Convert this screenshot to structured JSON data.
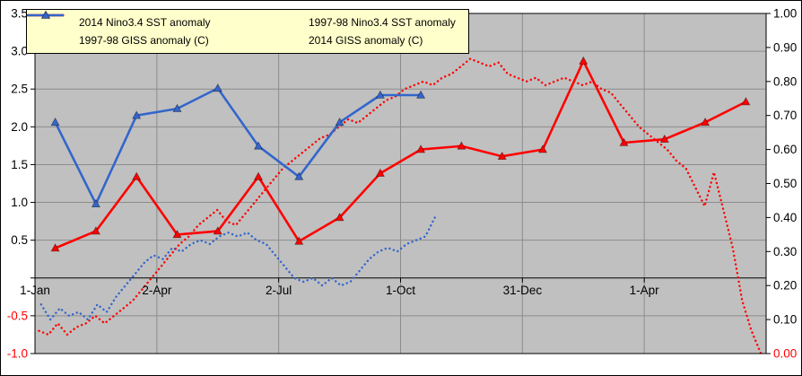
{
  "legend": {
    "background": "#FFFFCC",
    "items": [
      {
        "label": "2014 Nino3.4 SST anomaly",
        "style": "dotted",
        "color": "#3366CC"
      },
      {
        "label": "1997-98 Nino3.4 SST anomaly",
        "style": "dotted",
        "color": "#FF0000"
      },
      {
        "label": "1997-98 GISS anomaly (C)",
        "style": "solid-triangle",
        "color": "#FF0000"
      },
      {
        "label": "2014 GISS anomaly (C)",
        "style": "solid-triangle",
        "color": "#3366CC"
      }
    ]
  },
  "chart_data": {
    "type": "line",
    "plot_bg": "#C0C0C0",
    "grid_color": "#8C8C8C",
    "legend_position": "top-left",
    "left_axis": {
      "min": -1.0,
      "max": 3.5,
      "tick_step": 0.5,
      "ticks": [
        {
          "label": "3.5",
          "value": 3.5
        },
        {
          "label": "3.0",
          "value": 3.0
        },
        {
          "label": "2.5",
          "value": 2.5
        },
        {
          "label": "2.0",
          "value": 2.0
        },
        {
          "label": "1.5",
          "value": 1.5
        },
        {
          "label": "1.0",
          "value": 1.0
        },
        {
          "label": "0.5",
          "value": 0.5
        },
        {
          "label": "-0.5",
          "value": -0.5,
          "color": "#FF0000"
        },
        {
          "label": "-1.0",
          "value": -1.0,
          "color": "#FF0000"
        }
      ]
    },
    "right_axis": {
      "min": 0.0,
      "max": 1.0,
      "tick_step": 0.1,
      "ticks": [
        {
          "label": "1.00",
          "value": 1.0
        },
        {
          "label": "0.90",
          "value": 0.9
        },
        {
          "label": "0.80",
          "value": 0.8
        },
        {
          "label": "0.70",
          "value": 0.7
        },
        {
          "label": "0.60",
          "value": 0.6
        },
        {
          "label": "0.50",
          "value": 0.5
        },
        {
          "label": "0.40",
          "value": 0.4
        },
        {
          "label": "0.30",
          "value": 0.3
        },
        {
          "label": "0.20",
          "value": 0.2
        },
        {
          "label": "0.10",
          "value": 0.1
        },
        {
          "label": "0.00",
          "value": 0.0,
          "color": "#FF0000"
        }
      ]
    },
    "x_axis": {
      "months_total": 18,
      "grid_months": [
        3,
        6,
        9,
        12,
        15
      ],
      "tick_mark_months": [
        0,
        3,
        6,
        9,
        12,
        15,
        18
      ],
      "ticks": [
        {
          "label": "1-Jan",
          "month": 0
        },
        {
          "label": "2-Apr",
          "month": 3
        },
        {
          "label": "2-Jul",
          "month": 6
        },
        {
          "label": "1-Oct",
          "month": 9
        },
        {
          "label": "31-Dec",
          "month": 12
        },
        {
          "label": "1-Apr",
          "month": 15
        }
      ]
    },
    "series": [
      {
        "name": "2014 Nino3.4 SST anomaly",
        "axis": "left",
        "color": "#3366CC",
        "line": "dotted",
        "markers": false,
        "x_start": 0.15,
        "x_step": 0.2308,
        "values": [
          -0.35,
          -0.55,
          -0.4,
          -0.5,
          -0.45,
          -0.55,
          -0.35,
          -0.45,
          -0.25,
          -0.1,
          0.05,
          0.2,
          0.3,
          0.25,
          0.4,
          0.35,
          0.45,
          0.5,
          0.45,
          0.55,
          0.6,
          0.55,
          0.6,
          0.5,
          0.45,
          0.3,
          0.15,
          0.0,
          -0.05,
          0.0,
          -0.1,
          0.0,
          -0.1,
          -0.05,
          0.1,
          0.25,
          0.35,
          0.4,
          0.35,
          0.45,
          0.5,
          0.55,
          0.8
        ]
      },
      {
        "name": "1997-98 Nino3.4 SST anomaly",
        "axis": "left",
        "color": "#FF0000",
        "line": "dotted",
        "markers": false,
        "x_start": 0.1,
        "x_step": 0.2308,
        "values": [
          -0.7,
          -0.75,
          -0.6,
          -0.75,
          -0.65,
          -0.6,
          -0.5,
          -0.6,
          -0.5,
          -0.4,
          -0.3,
          -0.15,
          0.0,
          0.15,
          0.3,
          0.45,
          0.55,
          0.7,
          0.8,
          0.9,
          0.75,
          0.7,
          0.85,
          1.0,
          1.15,
          1.3,
          1.45,
          1.55,
          1.65,
          1.75,
          1.85,
          1.9,
          2.0,
          2.1,
          2.05,
          2.15,
          2.25,
          2.35,
          2.4,
          2.5,
          2.55,
          2.6,
          2.55,
          2.65,
          2.7,
          2.8,
          2.9,
          2.85,
          2.8,
          2.85,
          2.7,
          2.65,
          2.6,
          2.65,
          2.55,
          2.6,
          2.65,
          2.6,
          2.55,
          2.6,
          2.5,
          2.45,
          2.3,
          2.15,
          2.0,
          1.9,
          1.8,
          1.7,
          1.55,
          1.45,
          1.2,
          0.95,
          1.4,
          0.9,
          0.4,
          -0.3,
          -0.7,
          -1.0
        ]
      },
      {
        "name": "1997-98 GISS anomaly (C)",
        "axis": "right",
        "color": "#FF0000",
        "line": "solid",
        "markers": true,
        "x_start": 0.5,
        "x_step": 1,
        "values": [
          0.31,
          0.36,
          0.52,
          0.35,
          0.36,
          0.52,
          0.33,
          0.4,
          0.53,
          0.6,
          0.61,
          0.58,
          0.6,
          0.86,
          0.62,
          0.63,
          0.68,
          0.74
        ]
      },
      {
        "name": "2014 GISS anomaly (C)",
        "axis": "right",
        "color": "#3366CC",
        "line": "solid",
        "markers": true,
        "x_start": 0.5,
        "x_step": 1,
        "values": [
          0.68,
          0.44,
          0.7,
          0.72,
          0.78,
          0.61,
          0.52,
          0.68,
          0.76,
          0.76
        ]
      }
    ]
  }
}
